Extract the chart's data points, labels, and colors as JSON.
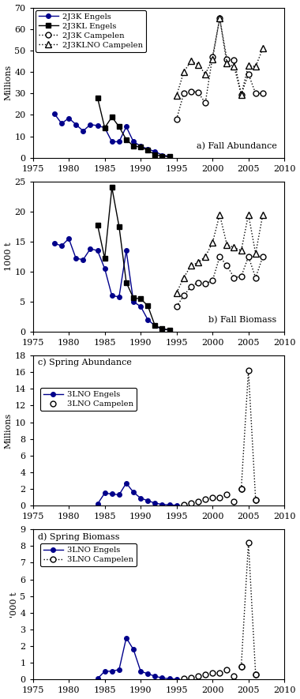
{
  "panel_a": {
    "title": "a) Fall Abundance",
    "ylabel": "Millions",
    "ylim": [
      0,
      70
    ],
    "yticks": [
      0,
      10,
      20,
      30,
      40,
      50,
      60,
      70
    ],
    "xlim": [
      1975,
      2010
    ],
    "xticks": [
      1975,
      1980,
      1985,
      1990,
      1995,
      2000,
      2005,
      2010
    ],
    "series": {
      "2J3K_Engels": {
        "x": [
          1978,
          1979,
          1980,
          1981,
          1982,
          1983,
          1984,
          1985,
          1986,
          1987,
          1988,
          1989,
          1990,
          1991,
          1992,
          1993,
          1994
        ],
        "y": [
          20.5,
          16.0,
          18.5,
          15.5,
          12.5,
          15.5,
          15.0,
          14.0,
          7.5,
          7.5,
          14.5,
          7.5,
          5.5,
          4.0,
          3.0,
          1.2,
          0.8
        ],
        "color": "#00008B",
        "marker": "o",
        "linestyle": "-",
        "markersize": 4,
        "markerfacecolor": "#00008B"
      },
      "2J3KL_Engels": {
        "x": [
          1984,
          1985,
          1986,
          1987,
          1988,
          1989,
          1990,
          1991,
          1992,
          1993,
          1994
        ],
        "y": [
          28.0,
          14.0,
          19.0,
          14.5,
          8.5,
          5.5,
          5.0,
          3.5,
          1.5,
          0.8,
          0.5
        ],
        "color": "#000000",
        "marker": "s",
        "linestyle": "-",
        "markersize": 4,
        "markerfacecolor": "#000000"
      },
      "2J3K_Campelen": {
        "x": [
          1995,
          1996,
          1997,
          1998,
          1999,
          2000,
          2001,
          2002,
          2003,
          2004,
          2005,
          2006,
          2007
        ],
        "y": [
          18.0,
          30.0,
          31.0,
          30.5,
          25.5,
          47.0,
          65.0,
          46.0,
          45.5,
          29.5,
          39.0,
          30.0,
          30.0
        ],
        "color": "#000000",
        "marker": "o",
        "linestyle": ":",
        "markersize": 5,
        "markerfacecolor": "#ffffff"
      },
      "2J3KLNO_Campelen": {
        "x": [
          1995,
          1996,
          1997,
          1998,
          1999,
          2000,
          2001,
          2002,
          2003,
          2004,
          2005,
          2006,
          2007
        ],
        "y": [
          29.0,
          40.0,
          45.0,
          43.5,
          39.0,
          46.0,
          65.0,
          44.0,
          42.5,
          29.5,
          43.0,
          42.5,
          51.0
        ],
        "color": "#000000",
        "marker": "^",
        "linestyle": ":",
        "markersize": 6,
        "markerfacecolor": "#ffffff"
      }
    },
    "legend": {
      "entries": [
        {
          "label": "2J3K Engels",
          "color": "#00008B",
          "marker": "o",
          "linestyle": "-",
          "markersize": 4,
          "markerfacecolor": "#00008B"
        },
        {
          "label": "2J3KL Engels",
          "color": "#000000",
          "marker": "s",
          "linestyle": "-",
          "markersize": 4,
          "markerfacecolor": "#000000"
        },
        {
          "label": "2J3K Campelen",
          "color": "#000000",
          "marker": "o",
          "linestyle": ":",
          "markersize": 5,
          "markerfacecolor": "#ffffff"
        },
        {
          "label": "2J3KLNO Campelen",
          "color": "#000000",
          "marker": "^",
          "linestyle": ":",
          "markersize": 6,
          "markerfacecolor": "#ffffff"
        }
      ]
    }
  },
  "panel_b": {
    "title": "b) Fall Biomass",
    "ylabel": "1000 t",
    "ylim": [
      0,
      25
    ],
    "yticks": [
      0,
      5,
      10,
      15,
      20,
      25
    ],
    "xlim": [
      1975,
      2010
    ],
    "xticks": [
      1975,
      1980,
      1985,
      1990,
      1995,
      2000,
      2005,
      2010
    ],
    "series": {
      "2J3K_Engels": {
        "x": [
          1978,
          1979,
          1980,
          1981,
          1982,
          1983,
          1984,
          1985,
          1986,
          1987,
          1988,
          1989,
          1990,
          1991,
          1992,
          1993,
          1994
        ],
        "y": [
          14.7,
          14.3,
          15.5,
          12.2,
          12.0,
          13.8,
          13.5,
          10.5,
          6.0,
          5.8,
          13.5,
          5.0,
          4.2,
          2.0,
          1.0,
          0.4,
          0.3
        ],
        "color": "#00008B",
        "marker": "o",
        "linestyle": "-",
        "markersize": 4,
        "markerfacecolor": "#00008B"
      },
      "2J3KL_Engels": {
        "x": [
          1984,
          1985,
          1986,
          1987,
          1988,
          1989,
          1990,
          1991,
          1992,
          1993,
          1994
        ],
        "y": [
          17.8,
          12.2,
          24.0,
          17.5,
          8.2,
          5.6,
          5.5,
          4.3,
          1.0,
          0.5,
          0.3
        ],
        "color": "#000000",
        "marker": "s",
        "linestyle": "-",
        "markersize": 4,
        "markerfacecolor": "#000000"
      },
      "2J3K_Campelen": {
        "x": [
          1995,
          1996,
          1997,
          1998,
          1999,
          2000,
          2001,
          2002,
          2003,
          2004,
          2005,
          2006,
          2007
        ],
        "y": [
          4.2,
          6.0,
          7.5,
          8.2,
          8.0,
          8.5,
          12.5,
          11.0,
          9.0,
          9.2,
          12.5,
          9.0,
          12.5
        ],
        "color": "#000000",
        "marker": "o",
        "linestyle": ":",
        "markersize": 5,
        "markerfacecolor": "#ffffff"
      },
      "2J3KLNO_Campelen": {
        "x": [
          1995,
          1996,
          1997,
          1998,
          1999,
          2000,
          2001,
          2002,
          2003,
          2004,
          2005,
          2006,
          2007
        ],
        "y": [
          6.5,
          9.0,
          11.0,
          11.5,
          12.5,
          14.8,
          19.5,
          14.5,
          14.0,
          13.5,
          19.5,
          13.0,
          19.5
        ],
        "color": "#000000",
        "marker": "^",
        "linestyle": ":",
        "markersize": 6,
        "markerfacecolor": "#ffffff"
      }
    }
  },
  "panel_c": {
    "title": "c) Spring Abundance",
    "ylabel": "Millions",
    "ylim": [
      0,
      18
    ],
    "yticks": [
      0,
      2,
      4,
      6,
      8,
      10,
      12,
      14,
      16,
      18
    ],
    "xlim": [
      1975,
      2010
    ],
    "xticks": [
      1975,
      1980,
      1985,
      1990,
      1995,
      2000,
      2005,
      2010
    ],
    "series": {
      "3LNO_Engels": {
        "x": [
          1984,
          1985,
          1986,
          1987,
          1988,
          1989,
          1990,
          1991,
          1992,
          1993,
          1994,
          1995
        ],
        "y": [
          0.2,
          1.5,
          1.4,
          1.3,
          2.7,
          1.6,
          0.9,
          0.6,
          0.3,
          0.15,
          0.1,
          0.05
        ],
        "color": "#00008B",
        "marker": "o",
        "linestyle": "-",
        "markersize": 4,
        "markerfacecolor": "#00008B"
      },
      "3LNO_Campelen_dots": {
        "x": [
          1996,
          1997,
          1998,
          1999,
          2000,
          2001,
          2002,
          2003,
          2004,
          2006
        ],
        "y": [
          0.1,
          0.3,
          0.5,
          0.8,
          1.0,
          1.0,
          1.3,
          0.5,
          2.0,
          0.7
        ],
        "color": "#000000",
        "marker": "o",
        "linestyle": "None",
        "markersize": 5,
        "markerfacecolor": "#ffffff"
      },
      "3LNO_Campelen_spike": {
        "x": [
          2004,
          2005,
          2006
        ],
        "y": [
          2.0,
          16.2,
          0.7
        ],
        "color": "#000000",
        "marker": "o",
        "linestyle": ":",
        "markersize": 5,
        "markerfacecolor": "#ffffff"
      }
    },
    "legend": {
      "entries": [
        {
          "label": "3LNO Engels",
          "color": "#00008B",
          "marker": "o",
          "linestyle": "-",
          "markersize": 4,
          "markerfacecolor": "#00008B"
        },
        {
          "label": "3LNO Campelen",
          "color": "#000000",
          "marker": "o",
          "linestyle": "None",
          "markersize": 5,
          "markerfacecolor": "#ffffff"
        }
      ]
    }
  },
  "panel_d": {
    "title": "d) Spring Biomass",
    "ylabel": "'000 t",
    "ylim": [
      0,
      9
    ],
    "yticks": [
      0,
      1,
      2,
      3,
      4,
      5,
      6,
      7,
      8,
      9
    ],
    "xlim": [
      1975,
      2010
    ],
    "xticks": [
      1975,
      1980,
      1985,
      1990,
      1995,
      2000,
      2005,
      2010
    ],
    "series": {
      "3LNO_Engels": {
        "x": [
          1984,
          1985,
          1986,
          1987,
          1988,
          1989,
          1990,
          1991,
          1992,
          1993,
          1994,
          1995
        ],
        "y": [
          0.05,
          0.5,
          0.5,
          0.6,
          2.5,
          1.8,
          0.5,
          0.35,
          0.2,
          0.1,
          0.05,
          0.02
        ],
        "color": "#00008B",
        "marker": "o",
        "linestyle": "-",
        "markersize": 4,
        "markerfacecolor": "#00008B"
      },
      "3LNO_Campelen_dots": {
        "x": [
          1996,
          1997,
          1998,
          1999,
          2000,
          2001,
          2002,
          2003,
          2004,
          2006
        ],
        "y": [
          0.05,
          0.1,
          0.2,
          0.3,
          0.4,
          0.4,
          0.6,
          0.2,
          0.8,
          0.3
        ],
        "color": "#000000",
        "marker": "o",
        "linestyle": "None",
        "markersize": 5,
        "markerfacecolor": "#ffffff"
      },
      "3LNO_Campelen_spike": {
        "x": [
          2004,
          2005,
          2006
        ],
        "y": [
          0.8,
          8.2,
          0.3
        ],
        "color": "#000000",
        "marker": "o",
        "linestyle": ":",
        "markersize": 5,
        "markerfacecolor": "#ffffff"
      }
    },
    "legend": {
      "entries": [
        {
          "label": "3LNO Engels",
          "color": "#00008B",
          "marker": "o",
          "linestyle": "-",
          "markersize": 4,
          "markerfacecolor": "#00008B"
        },
        {
          "label": "3LNO Campelen",
          "color": "#000000",
          "marker": "o",
          "linestyle": ":",
          "markersize": 5,
          "markerfacecolor": "#ffffff"
        }
      ]
    }
  },
  "background_color": "#ffffff",
  "font_size": 8,
  "tick_font_size": 8,
  "label_font_size": 8
}
